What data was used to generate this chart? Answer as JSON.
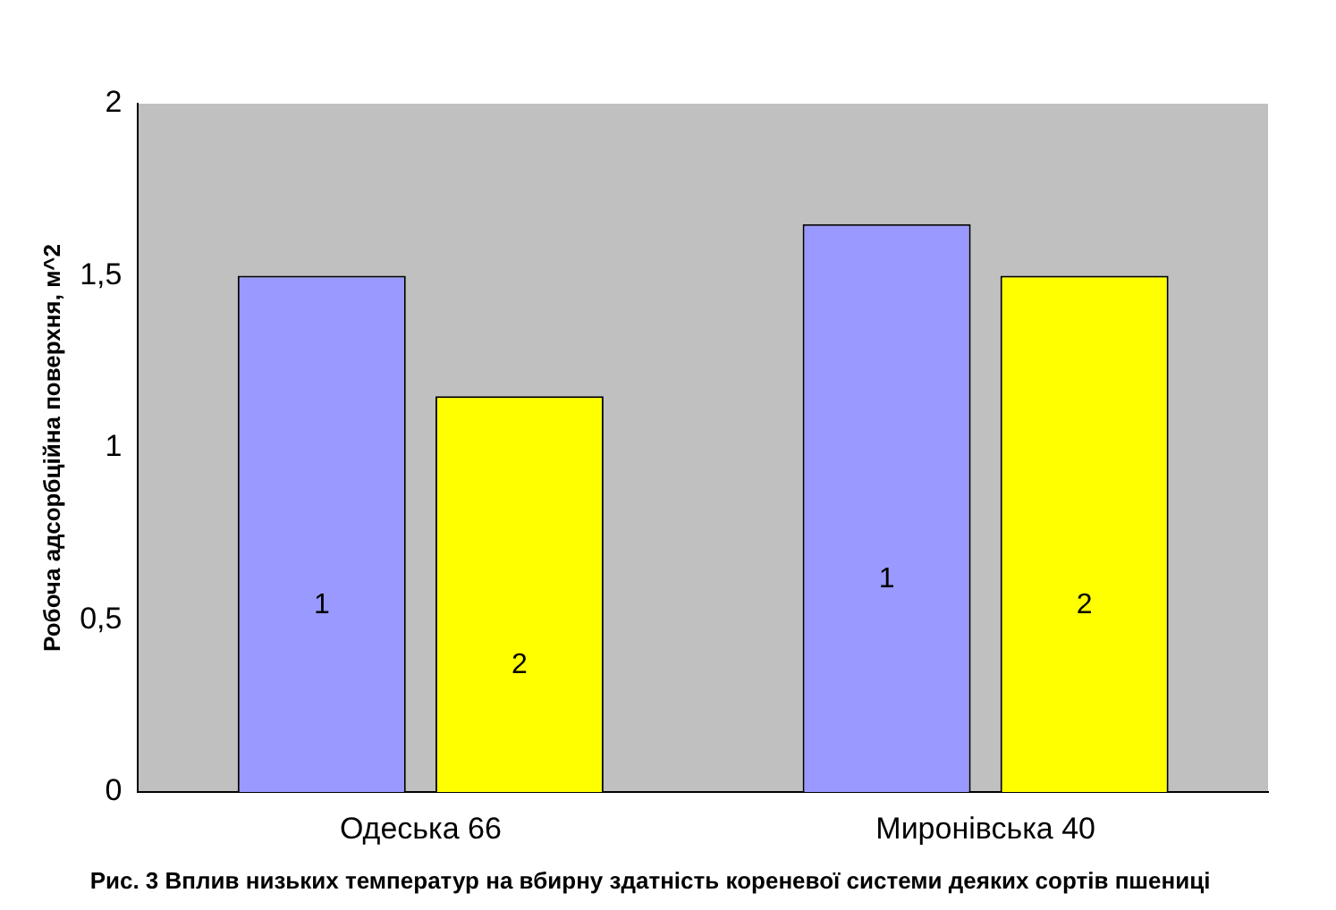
{
  "chart_data": {
    "type": "bar",
    "title": "Рис. 3 Вплив низьких температур на вбирну здатність кореневої системи деяких сортів пшениці",
    "ylabel": "Робоча адсорбційна поверхня, м^2",
    "categories": [
      "Одеська 66",
      "Миронівська 40"
    ],
    "series": [
      {
        "name": "1",
        "color": "#9999ff",
        "values": [
          1.5,
          1.65
        ]
      },
      {
        "name": "2",
        "color": "#ffff00",
        "values": [
          1.15,
          1.5
        ]
      }
    ],
    "ylim": [
      0,
      2
    ],
    "yticks": [
      0,
      {
        "value": 0.5,
        "label": "0,5"
      },
      1,
      {
        "value": 1.5,
        "label": "1,5"
      },
      2
    ],
    "grid": false,
    "legend": false
  }
}
